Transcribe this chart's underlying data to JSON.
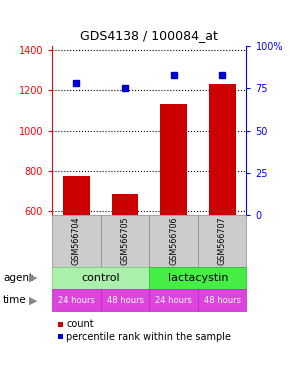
{
  "title": "GDS4138 / 100084_at",
  "samples": [
    "GSM566704",
    "GSM566705",
    "GSM566706",
    "GSM566707"
  ],
  "bar_values": [
    775,
    685,
    1130,
    1230
  ],
  "scatter_values": [
    78,
    75,
    83,
    83
  ],
  "bar_color": "#cc0000",
  "scatter_color": "#0000cc",
  "ylim_left": [
    580,
    1420
  ],
  "ylim_right": [
    0,
    100
  ],
  "yticks_left": [
    600,
    800,
    1000,
    1200,
    1400
  ],
  "yticks_right": [
    0,
    25,
    50,
    75,
    100
  ],
  "ytick_labels_right": [
    "0",
    "25",
    "50",
    "75",
    "100%"
  ],
  "agent_labels": [
    "control",
    "lactacystin"
  ],
  "agent_color_control": "#aaf0aa",
  "agent_color_lacta": "#44ee44",
  "time_labels": [
    "24 hours",
    "48 hours",
    "24 hours",
    "48 hours"
  ],
  "time_color": "#dd44dd",
  "agent_row_label": "agent",
  "time_row_label": "time",
  "legend_count_label": "count",
  "legend_pct_label": "percentile rank within the sample",
  "bar_width": 0.55,
  "sample_box_color": "#cccccc",
  "sample_box_edge": "#888888",
  "grid_color": "black",
  "grid_style": "dotted",
  "grid_lw": 0.8
}
